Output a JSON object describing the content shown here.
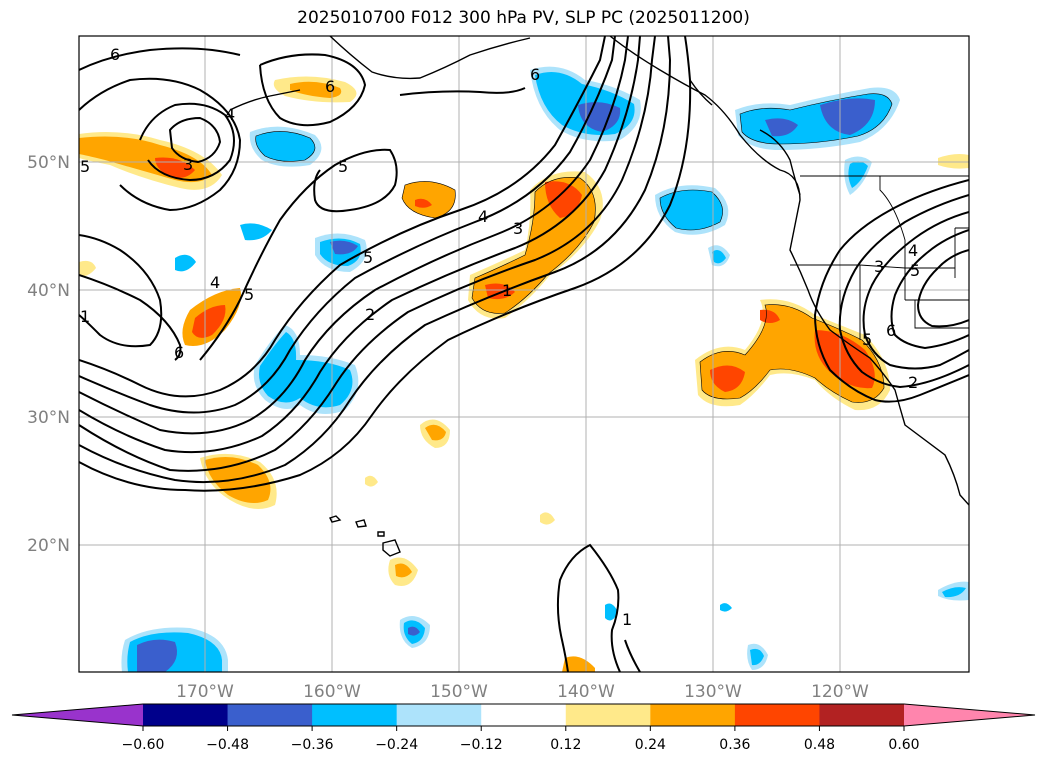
{
  "title": "2025010700 F012 300 hPa PV, SLP PC (2025011200)",
  "lat_labels": [
    "50°N",
    "40°N",
    "30°N",
    "20°N"
  ],
  "lon_labels": [
    "170°W",
    "160°W",
    "150°W",
    "140°W",
    "130°W",
    "120°W"
  ],
  "colorbar": {
    "ticks": [
      "−0.60",
      "−0.48",
      "−0.36",
      "−0.24",
      "−0.12",
      "0.12",
      "0.24",
      "0.36",
      "0.48",
      "0.60"
    ],
    "colors": [
      "#9933cc",
      "#00008b",
      "#3a5fcd",
      "#00bfff",
      "#ade3fb",
      "#ffffff",
      "#ffe98a",
      "#ffa500",
      "#ff4500",
      "#b22222",
      "#ff85ad"
    ]
  },
  "contour_labels": [
    "6",
    "6",
    "4",
    "3",
    "5",
    "5",
    "5",
    "6",
    "4",
    "3",
    "5",
    "4",
    "2",
    "1",
    "6",
    "1",
    "1",
    "4",
    "3",
    "5",
    "6",
    "2",
    "5"
  ]
}
